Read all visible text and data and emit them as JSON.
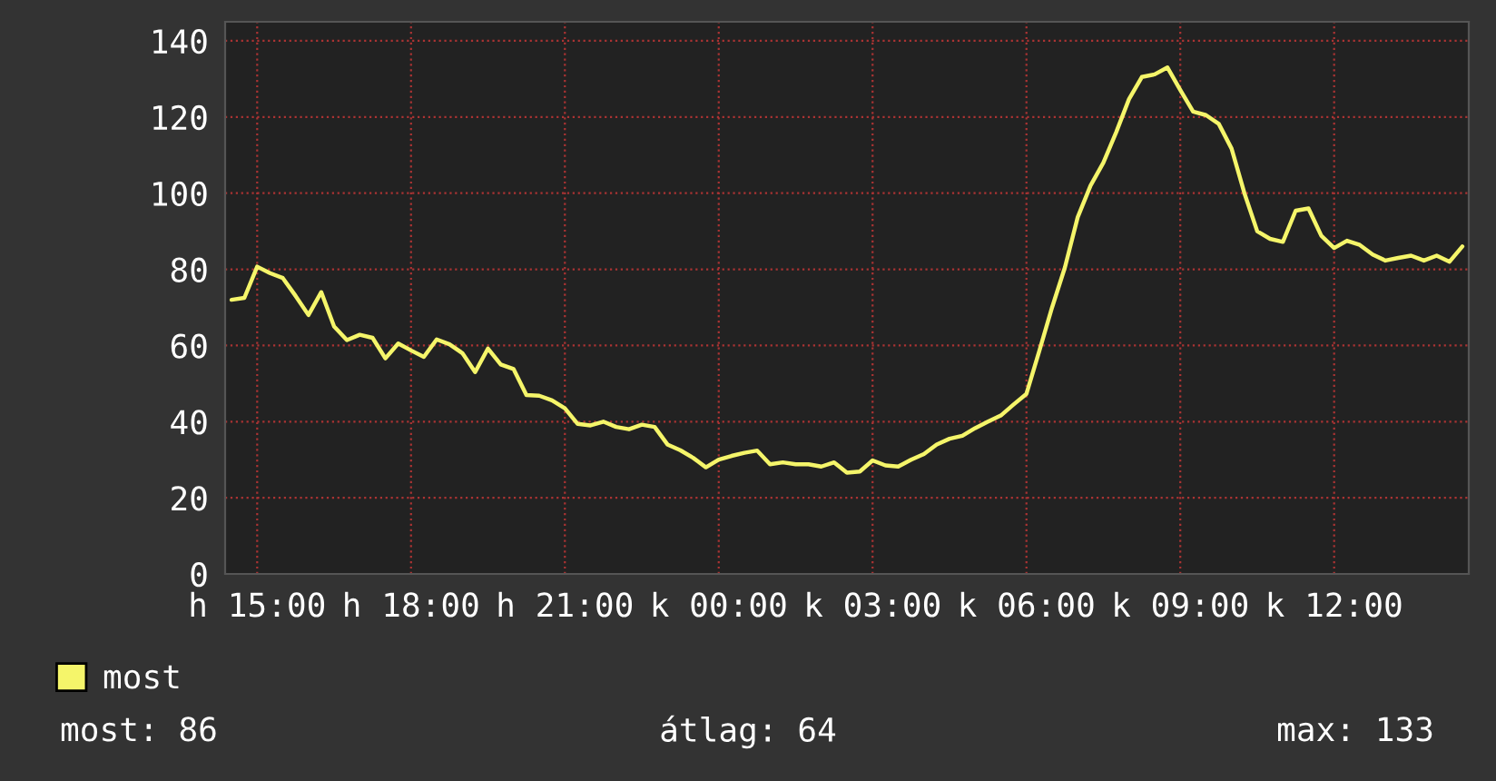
{
  "chart_data": {
    "type": "line",
    "categories": [
      null,
      null,
      "h 15:00",
      null,
      null,
      null,
      null,
      null,
      null,
      null,
      null,
      null,
      null,
      null,
      "h 18:00",
      null,
      null,
      null,
      null,
      null,
      null,
      null,
      null,
      null,
      null,
      null,
      "h 21:00",
      null,
      null,
      null,
      null,
      null,
      null,
      null,
      null,
      null,
      null,
      null,
      "k 00:00",
      null,
      null,
      null,
      null,
      null,
      null,
      null,
      null,
      null,
      null,
      null,
      "k 03:00",
      null,
      null,
      null,
      null,
      null,
      null,
      null,
      null,
      null,
      null,
      null,
      "k 06:00",
      null,
      null,
      null,
      null,
      null,
      null,
      null,
      null,
      null,
      null,
      null,
      "k 09:00",
      null,
      null,
      null,
      null,
      null,
      null,
      null,
      null,
      null,
      null,
      null,
      "k 12:00",
      null,
      null,
      null,
      null,
      null,
      null,
      null,
      null,
      null,
      null
    ],
    "series": [
      {
        "name": "most",
        "color": "#f5f56a",
        "values": [
          72,
          72.5,
          80.7,
          79,
          77.7,
          73,
          68,
          74,
          65,
          61.4,
          62.8,
          62,
          56.6,
          60.5,
          58.7,
          57,
          61.6,
          60.3,
          58,
          53,
          59.2,
          55,
          53.8,
          47,
          46.8,
          45.6,
          43.5,
          39.4,
          39,
          40,
          38.6,
          38,
          39.2,
          38.6,
          34,
          32.5,
          30.5,
          28,
          30,
          31,
          31.8,
          32.4,
          28.8,
          29.3,
          28.8,
          28.8,
          28.2,
          29.3,
          26.6,
          26.9,
          29.8,
          28.5,
          28.2,
          30,
          31.5,
          34,
          35.5,
          36.3,
          38.3,
          40,
          41.6,
          44.5,
          47.3,
          58.5,
          70,
          80.5,
          93.7,
          102,
          108,
          116,
          124.7,
          130.5,
          131.2,
          133,
          127.1,
          121.4,
          120.5,
          118.2,
          111.7,
          100,
          90,
          88,
          87.2,
          95.4,
          96,
          88.8,
          85.6,
          87.5,
          86.4,
          83.9,
          82.3,
          83,
          83.6,
          82.3,
          83.6,
          82,
          86
        ]
      }
    ],
    "ylim": [
      0,
      145
    ],
    "yticks": [
      0,
      20,
      40,
      60,
      80,
      100,
      120,
      140
    ],
    "grid": true,
    "legend": "bottom",
    "line_style": "solid",
    "marker": "none",
    "annotations": [
      "most: 86",
      "átlag: 64",
      "max: 133"
    ]
  }
}
